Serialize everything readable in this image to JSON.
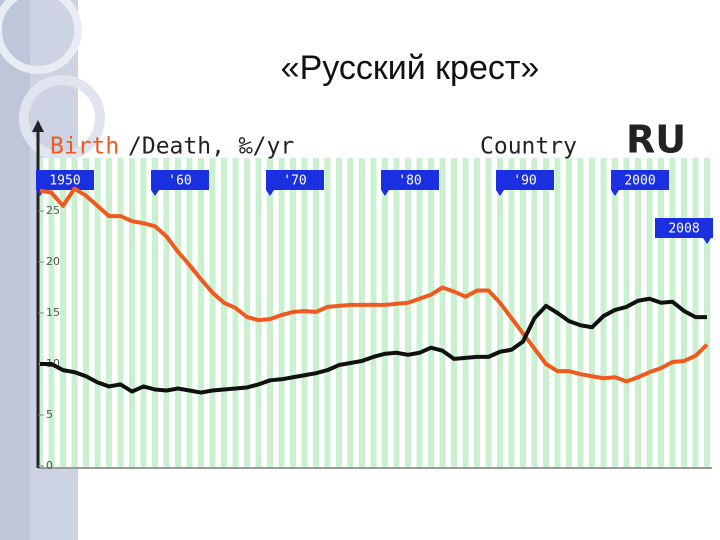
{
  "slide_title": "«Русский крест»",
  "chart_data": {
    "type": "line",
    "country_label": "Country",
    "country": "RU",
    "x": [
      1950,
      1951,
      1952,
      1953,
      1954,
      1955,
      1956,
      1957,
      1958,
      1959,
      1960,
      1961,
      1962,
      1963,
      1964,
      1965,
      1966,
      1967,
      1968,
      1969,
      1970,
      1971,
      1972,
      1973,
      1974,
      1975,
      1976,
      1977,
      1978,
      1979,
      1980,
      1981,
      1982,
      1983,
      1984,
      1985,
      1986,
      1987,
      1988,
      1989,
      1990,
      1991,
      1992,
      1993,
      1994,
      1995,
      1996,
      1997,
      1998,
      1999,
      2000,
      2001,
      2002,
      2003,
      2004,
      2005,
      2006,
      2007,
      2008
    ],
    "series": [
      {
        "name": "Birth",
        "color": "#f05a1e",
        "values": [
          27.0,
          26.8,
          25.5,
          27.2,
          26.5,
          25.5,
          24.5,
          24.5,
          24.0,
          23.8,
          23.5,
          22.5,
          21.0,
          19.7,
          18.3,
          17.0,
          16.0,
          15.5,
          14.6,
          14.3,
          14.4,
          14.8,
          15.1,
          15.2,
          15.1,
          15.6,
          15.7,
          15.8,
          15.8,
          15.8,
          15.8,
          15.9,
          16.0,
          16.4,
          16.8,
          17.5,
          17.1,
          16.6,
          17.2,
          17.2,
          16.0,
          14.5,
          13.0,
          11.5,
          10.0,
          9.3,
          9.3,
          9.0,
          8.8,
          8.6,
          8.7,
          8.3,
          8.7,
          9.2,
          9.6,
          10.2,
          10.3,
          10.8,
          11.9
        ]
      },
      {
        "name": "/Death, ‰/yr",
        "color": "#111111",
        "values": [
          10.0,
          10.0,
          9.4,
          9.2,
          8.8,
          8.2,
          7.8,
          8.0,
          7.3,
          7.8,
          7.5,
          7.4,
          7.6,
          7.4,
          7.2,
          7.4,
          7.5,
          7.6,
          7.7,
          8.0,
          8.4,
          8.5,
          8.7,
          8.9,
          9.1,
          9.4,
          9.9,
          10.1,
          10.3,
          10.7,
          11.0,
          11.1,
          10.9,
          11.1,
          11.6,
          11.3,
          10.5,
          10.6,
          10.7,
          10.7,
          11.2,
          11.4,
          12.2,
          14.5,
          15.7,
          15.0,
          14.2,
          13.8,
          13.6,
          14.7,
          15.3,
          15.6,
          16.2,
          16.4,
          16.0,
          16.1,
          15.2,
          14.6,
          14.6
        ]
      }
    ],
    "xlim": [
      1950,
      2008
    ],
    "xticks": [
      1950,
      {
        "value": 1960,
        "label": "'60"
      },
      {
        "value": 1970,
        "label": "'70"
      },
      {
        "value": 1980,
        "label": "'80"
      },
      {
        "value": 1990,
        "label": "'90"
      },
      2000,
      2008
    ],
    "ylim": [
      0,
      30
    ],
    "yticks": [
      0,
      5,
      10,
      15,
      20,
      25
    ]
  }
}
